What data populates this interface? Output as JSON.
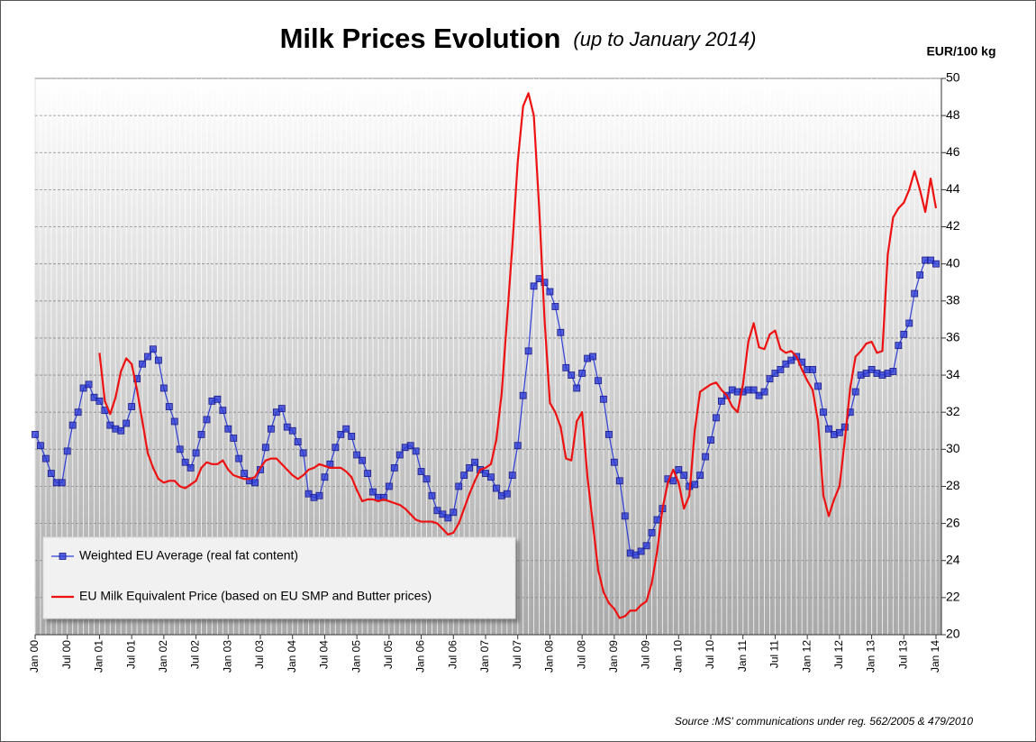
{
  "chart_data": {
    "type": "line",
    "title": "Milk Prices Evolution",
    "subtitle": "(up to January 2014)",
    "ylabel": "EUR/100 kg",
    "source": "Source :MS' communications under reg. 562/2005 & 479/2010",
    "categories": [
      "Jan 00",
      null,
      null,
      null,
      null,
      null,
      "Jul 00",
      null,
      null,
      null,
      null,
      null,
      "Jan 01",
      null,
      null,
      null,
      null,
      null,
      "Jul 01",
      null,
      null,
      null,
      null,
      null,
      "Jan 02",
      null,
      null,
      null,
      null,
      null,
      "Jul 02",
      null,
      null,
      null,
      null,
      null,
      "Jan 03",
      null,
      null,
      null,
      null,
      null,
      "Jul 03",
      null,
      null,
      null,
      null,
      null,
      "Jan 04",
      null,
      null,
      null,
      null,
      null,
      "Jul 04",
      null,
      null,
      null,
      null,
      null,
      "Jan 05",
      null,
      null,
      null,
      null,
      null,
      "Jul 05",
      null,
      null,
      null,
      null,
      null,
      "Jan 06",
      null,
      null,
      null,
      null,
      null,
      "Jul 06",
      null,
      null,
      null,
      null,
      null,
      "Jan 07",
      null,
      null,
      null,
      null,
      null,
      "Jul 07",
      null,
      null,
      null,
      null,
      null,
      "Jan 08",
      null,
      null,
      null,
      null,
      null,
      "Jul 08",
      null,
      null,
      null,
      null,
      null,
      "Jan 09",
      null,
      null,
      null,
      null,
      null,
      "Jul 09",
      null,
      null,
      null,
      null,
      null,
      "Jan 10",
      null,
      null,
      null,
      null,
      null,
      "Jul 10",
      null,
      null,
      null,
      null,
      null,
      "Jan 11",
      null,
      null,
      null,
      null,
      null,
      "Jul 11",
      null,
      null,
      null,
      null,
      null,
      "Jan 12",
      null,
      null,
      null,
      null,
      null,
      "Jul 12",
      null,
      null,
      null,
      null,
      null,
      "Jan 13",
      null,
      null,
      null,
      null,
      null,
      "Jul 13",
      null,
      null,
      null,
      null,
      null,
      "Jan 14"
    ],
    "series": [
      {
        "name": "Weighted EU Average (real fat content)",
        "color": "#2f3fd8",
        "marker": "square",
        "values": [
          30.8,
          30.2,
          29.5,
          28.7,
          28.2,
          28.2,
          29.9,
          31.3,
          32.0,
          33.3,
          33.5,
          32.8,
          32.6,
          32.1,
          31.3,
          31.1,
          31.0,
          31.4,
          32.3,
          33.8,
          34.6,
          35.0,
          35.4,
          34.8,
          33.3,
          32.3,
          31.5,
          30.0,
          29.3,
          29.0,
          29.8,
          30.8,
          31.6,
          32.6,
          32.7,
          32.1,
          31.1,
          30.6,
          29.5,
          28.7,
          28.3,
          28.2,
          28.9,
          30.1,
          31.1,
          32.0,
          32.2,
          31.2,
          31.0,
          30.4,
          29.8,
          27.6,
          27.4,
          27.5,
          28.5,
          29.2,
          30.1,
          30.8,
          31.1,
          30.7,
          29.7,
          29.4,
          28.7,
          27.7,
          27.4,
          27.4,
          28.0,
          29.0,
          29.7,
          30.1,
          30.2,
          29.9,
          28.8,
          28.4,
          27.5,
          26.7,
          26.5,
          26.3,
          26.6,
          28.0,
          28.6,
          29.0,
          29.3,
          28.9,
          28.7,
          28.5,
          27.9,
          27.5,
          27.6,
          28.6,
          30.2,
          32.9,
          35.3,
          38.8,
          39.2,
          39.0,
          38.5,
          37.7,
          36.3,
          34.4,
          34.0,
          33.3,
          34.1,
          34.9,
          35.0,
          33.7,
          32.7,
          30.8,
          29.3,
          28.3,
          26.4,
          24.4,
          24.3,
          24.5,
          24.8,
          25.5,
          26.2,
          26.8,
          28.4,
          28.3,
          28.9,
          28.6,
          28.0,
          28.1,
          28.6,
          29.6,
          30.5,
          31.7,
          32.6,
          32.9,
          33.2,
          33.1,
          33.1,
          33.2,
          33.2,
          32.9,
          33.1,
          33.8,
          34.1,
          34.3,
          34.6,
          34.8,
          35.0,
          34.7,
          34.3,
          34.3,
          33.4,
          32.0,
          31.1,
          30.8,
          30.9,
          31.2,
          32.0,
          33.1,
          34.0,
          34.1,
          34.3,
          34.1,
          34.0,
          34.1,
          34.2,
          35.6,
          36.2,
          36.8,
          38.4,
          39.4,
          40.2,
          40.2,
          40.0
        ]
      },
      {
        "name": "EU Milk Equivalent Price (based on EU SMP and Butter prices)",
        "color": "#ee1111",
        "marker": "none",
        "values": [
          null,
          null,
          null,
          null,
          null,
          null,
          null,
          null,
          null,
          null,
          null,
          null,
          35.2,
          32.6,
          31.9,
          32.8,
          34.2,
          34.9,
          34.6,
          33.2,
          31.5,
          29.8,
          29.0,
          28.4,
          28.2,
          28.3,
          28.3,
          28.0,
          27.9,
          28.1,
          28.3,
          29.0,
          29.3,
          29.2,
          29.2,
          29.4,
          28.9,
          28.6,
          28.5,
          28.4,
          28.4,
          28.5,
          29.0,
          29.4,
          29.5,
          29.5,
          29.2,
          28.9,
          28.6,
          28.4,
          28.6,
          28.9,
          29.0,
          29.2,
          29.1,
          29.0,
          29.0,
          29.0,
          28.8,
          28.5,
          27.8,
          27.2,
          27.3,
          27.3,
          27.2,
          27.3,
          27.2,
          27.1,
          27.0,
          26.8,
          26.5,
          26.2,
          26.1,
          26.1,
          26.1,
          26.0,
          25.7,
          25.4,
          25.5,
          26.0,
          26.8,
          27.6,
          28.3,
          28.9,
          29.0,
          29.2,
          30.5,
          33.0,
          37.0,
          41.0,
          45.5,
          48.5,
          49.2,
          48.0,
          43.0,
          37.0,
          32.5,
          32.0,
          31.2,
          29.5,
          29.4,
          31.5,
          32.0,
          28.5,
          26.0,
          23.5,
          22.3,
          21.7,
          21.4,
          20.9,
          21.0,
          21.3,
          21.3,
          21.6,
          21.8,
          22.8,
          24.5,
          26.8,
          28.2,
          28.9,
          28.2,
          26.8,
          27.5,
          31.0,
          33.1,
          33.3,
          33.5,
          33.6,
          33.2,
          32.9,
          32.3,
          32.0,
          33.5,
          35.8,
          36.8,
          35.5,
          35.4,
          36.2,
          36.4,
          35.4,
          35.2,
          35.3,
          35.0,
          34.3,
          33.7,
          33.2,
          31.5,
          27.5,
          26.4,
          27.3,
          28.0,
          30.5,
          33.3,
          35.0,
          35.3,
          35.7,
          35.8,
          35.2,
          35.3,
          40.5,
          42.5,
          43.0,
          43.3,
          44.0,
          45.0,
          44.0,
          42.8,
          44.6,
          43.0
        ]
      }
    ],
    "ylim": [
      20,
      50
    ],
    "yticks": [
      20,
      22,
      24,
      26,
      28,
      30,
      32,
      34,
      36,
      38,
      40,
      42,
      44,
      46,
      48,
      50
    ],
    "y_axis_side": "right",
    "grid": true,
    "legend": "lower left"
  }
}
